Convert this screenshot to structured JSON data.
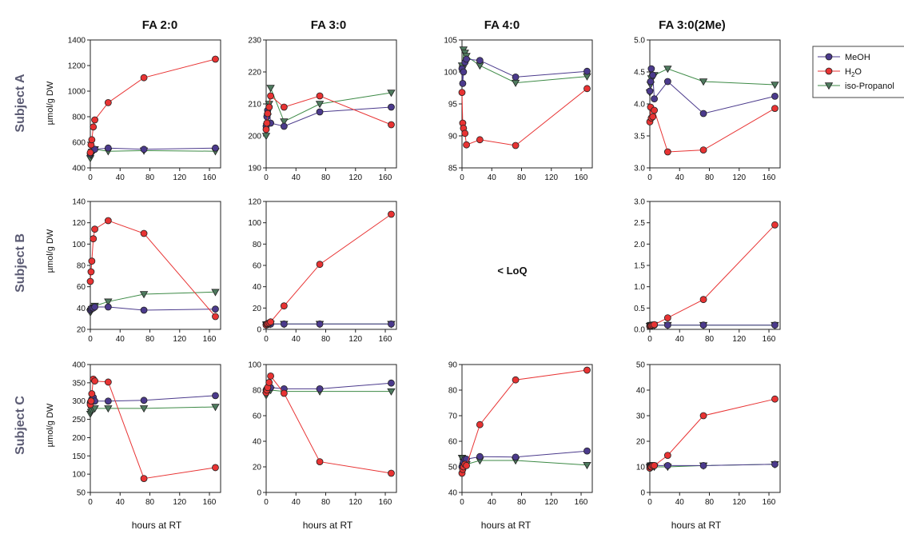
{
  "figure": {
    "column_titles": [
      "FA 2:0",
      "FA 3:0",
      "FA 4:0",
      "FA 3:0(2Me)"
    ],
    "row_titles": [
      "Subject A",
      "Subject B",
      "Subject C"
    ],
    "ylabel": "µmol/g DW",
    "xlabel": "hours at RT",
    "missing_panel_note": "< LoQ",
    "legend": [
      {
        "label": "MeOH",
        "marker": "circle",
        "color": "#4b3a8c",
        "fill": "#4b3a8c"
      },
      {
        "label": "H2O",
        "marker": "circle",
        "color": "#e83333",
        "fill": "#e83333"
      },
      {
        "label": "iso-Propanol",
        "marker": "triangle-down",
        "color": "#3d8a46",
        "fill": "#4e7a5e"
      }
    ]
  },
  "chart_data": [
    {
      "type": "line",
      "id": "A-FA2:0",
      "row": 0,
      "col": 0,
      "xticks": [
        0,
        40,
        80,
        120,
        160
      ],
      "yticks": [
        400,
        600,
        800,
        1000,
        1200,
        1400
      ],
      "xlim": [
        0,
        175
      ],
      "ylim": [
        400,
        1400
      ],
      "series": [
        {
          "name": "MeOH",
          "x": [
            0,
            1,
            2,
            4,
            6,
            24,
            72,
            168
          ],
          "y": [
            510,
            520,
            530,
            540,
            545,
            555,
            545,
            555
          ]
        },
        {
          "name": "H2O",
          "x": [
            0,
            1,
            2,
            4,
            6,
            24,
            72,
            168
          ],
          "y": [
            520,
            580,
            620,
            720,
            775,
            910,
            1105,
            1250
          ]
        },
        {
          "name": "iso-Propanol",
          "x": [
            0,
            1,
            2,
            4,
            6,
            24,
            72,
            168
          ],
          "y": [
            475,
            500,
            525,
            540,
            545,
            530,
            535,
            530
          ]
        }
      ]
    },
    {
      "type": "line",
      "id": "A-FA3:0",
      "row": 0,
      "col": 1,
      "xticks": [
        0,
        40,
        80,
        120,
        160
      ],
      "yticks": [
        190,
        200,
        210,
        220,
        230
      ],
      "xlim": [
        0,
        175
      ],
      "ylim": [
        190,
        230
      ],
      "series": [
        {
          "name": "MeOH",
          "x": [
            0,
            1,
            2,
            4,
            6,
            24,
            72,
            168
          ],
          "y": [
            203,
            206,
            208,
            209,
            204,
            203,
            207.5,
            209
          ]
        },
        {
          "name": "H2O",
          "x": [
            0,
            1,
            2,
            4,
            6,
            24,
            72,
            168
          ],
          "y": [
            202,
            204,
            207,
            209,
            212.5,
            209,
            212.5,
            203.5
          ]
        },
        {
          "name": "iso-Propanol",
          "x": [
            0,
            1,
            2,
            4,
            6,
            24,
            72,
            168
          ],
          "y": [
            200,
            203,
            206,
            210,
            215,
            204.5,
            210,
            213.5
          ]
        }
      ]
    },
    {
      "type": "line",
      "id": "A-FA4:0",
      "row": 0,
      "col": 2,
      "xticks": [
        0,
        40,
        80,
        120,
        160
      ],
      "yticks": [
        85,
        90,
        95,
        100,
        105
      ],
      "xlim": [
        0,
        175
      ],
      "ylim": [
        85,
        105
      ],
      "series": [
        {
          "name": "MeOH",
          "x": [
            0,
            1,
            2,
            4,
            6,
            24,
            72,
            168
          ],
          "y": [
            100.5,
            98.2,
            100,
            101.5,
            102,
            101.8,
            99.2,
            100.1
          ]
        },
        {
          "name": "H2O",
          "x": [
            0,
            1,
            2,
            4,
            6,
            24,
            72,
            168
          ],
          "y": [
            96.8,
            92.0,
            91.2,
            90.4,
            88.6,
            89.4,
            88.5,
            97.4
          ]
        },
        {
          "name": "iso-Propanol",
          "x": [
            0,
            1,
            2,
            4,
            6,
            24,
            72,
            168
          ],
          "y": [
            101,
            100.5,
            103.5,
            103,
            102.5,
            101,
            98.3,
            99.3
          ]
        }
      ]
    },
    {
      "type": "line",
      "id": "A-FA3:0(2Me)",
      "row": 0,
      "col": 3,
      "xticks": [
        0,
        40,
        80,
        120,
        160
      ],
      "yticks": [
        3.0,
        3.5,
        4.0,
        4.5,
        5.0
      ],
      "xlim": [
        0,
        175
      ],
      "ylim": [
        3.0,
        5.0
      ],
      "decimals": 1,
      "series": [
        {
          "name": "MeOH",
          "x": [
            0,
            1,
            2,
            4,
            6,
            24,
            72,
            168
          ],
          "y": [
            4.2,
            4.35,
            4.55,
            4.45,
            4.08,
            4.35,
            3.85,
            4.12
          ]
        },
        {
          "name": "H2O",
          "x": [
            0,
            1,
            2,
            4,
            6,
            24,
            72,
            168
          ],
          "y": [
            3.72,
            3.95,
            3.78,
            3.8,
            3.9,
            3.25,
            3.28,
            3.93
          ]
        },
        {
          "name": "iso-Propanol",
          "x": [
            0,
            1,
            2,
            4,
            6,
            24,
            72,
            168
          ],
          "y": [
            4.18,
            4.3,
            4.4,
            4.42,
            4.45,
            4.55,
            4.35,
            4.3
          ]
        }
      ]
    },
    {
      "type": "line",
      "id": "B-FA2:0",
      "row": 1,
      "col": 0,
      "xticks": [
        0,
        40,
        80,
        120,
        160
      ],
      "yticks": [
        20,
        40,
        60,
        80,
        100,
        120,
        140
      ],
      "xlim": [
        0,
        175
      ],
      "ylim": [
        20,
        140
      ],
      "series": [
        {
          "name": "MeOH",
          "x": [
            0,
            1,
            2,
            4,
            6,
            24,
            72,
            168
          ],
          "y": [
            38,
            39,
            40,
            40,
            41,
            41,
            38,
            39
          ]
        },
        {
          "name": "H2O",
          "x": [
            0,
            1,
            2,
            4,
            6,
            24,
            72,
            168
          ],
          "y": [
            65,
            74,
            84,
            105,
            114,
            122,
            110,
            32
          ]
        },
        {
          "name": "iso-Propanol",
          "x": [
            0,
            1,
            2,
            4,
            6,
            24,
            72,
            168
          ],
          "y": [
            36,
            37,
            39,
            40,
            42,
            46,
            53,
            55
          ]
        }
      ]
    },
    {
      "type": "line",
      "id": "B-FA3:0",
      "row": 1,
      "col": 1,
      "xticks": [
        0,
        40,
        80,
        120,
        160
      ],
      "yticks": [
        0,
        20,
        40,
        60,
        80,
        100,
        120
      ],
      "xlim": [
        0,
        175
      ],
      "ylim": [
        0,
        120
      ],
      "series": [
        {
          "name": "MeOH",
          "x": [
            0,
            1,
            2,
            4,
            6,
            24,
            72,
            168
          ],
          "y": [
            4.5,
            4.7,
            4.8,
            5,
            5,
            5,
            5,
            5
          ]
        },
        {
          "name": "H2O",
          "x": [
            0,
            1,
            2,
            4,
            6,
            24,
            72,
            168
          ],
          "y": [
            4,
            5,
            5.5,
            6,
            7,
            22,
            61,
            108
          ]
        },
        {
          "name": "iso-Propanol",
          "x": [
            0,
            1,
            2,
            4,
            6,
            24,
            72,
            168
          ],
          "y": [
            4.5,
            4.6,
            4.8,
            5,
            5,
            5,
            5,
            5
          ]
        }
      ]
    },
    {
      "type": "line",
      "id": "B-FA3:0(2Me)",
      "row": 1,
      "col": 3,
      "xticks": [
        0,
        40,
        80,
        120,
        160
      ],
      "yticks": [
        0.0,
        0.5,
        1.0,
        1.5,
        2.0,
        2.5,
        3.0
      ],
      "xlim": [
        0,
        175
      ],
      "ylim": [
        0,
        3.0
      ],
      "decimals": 1,
      "series": [
        {
          "name": "MeOH",
          "x": [
            0,
            1,
            2,
            4,
            6,
            24,
            72,
            168
          ],
          "y": [
            0.08,
            0.09,
            0.1,
            0.1,
            0.1,
            0.1,
            0.1,
            0.1
          ]
        },
        {
          "name": "H2O",
          "x": [
            0,
            1,
            2,
            4,
            6,
            24,
            72,
            168
          ],
          "y": [
            0.07,
            0.08,
            0.09,
            0.1,
            0.11,
            0.27,
            0.7,
            2.45
          ]
        },
        {
          "name": "iso-Propanol",
          "x": [
            0,
            1,
            2,
            4,
            6,
            24,
            72,
            168
          ],
          "y": [
            0.08,
            0.09,
            0.1,
            0.1,
            0.1,
            0.1,
            0.1,
            0.1
          ]
        }
      ]
    },
    {
      "type": "line",
      "id": "C-FA2:0",
      "row": 2,
      "col": 0,
      "xticks": [
        0,
        40,
        80,
        120,
        160
      ],
      "yticks": [
        50,
        100,
        150,
        200,
        250,
        300,
        350,
        400
      ],
      "xlim": [
        0,
        175
      ],
      "ylim": [
        50,
        400
      ],
      "series": [
        {
          "name": "MeOH",
          "x": [
            0,
            1,
            2,
            4,
            6,
            24,
            72,
            168
          ],
          "y": [
            295,
            300,
            305,
            310,
            300,
            300,
            302,
            315
          ]
        },
        {
          "name": "H2O",
          "x": [
            0,
            1,
            2,
            4,
            6,
            24,
            72,
            168
          ],
          "y": [
            290,
            300,
            320,
            360,
            355,
            352,
            88,
            118
          ]
        },
        {
          "name": "iso-Propanol",
          "x": [
            0,
            1,
            2,
            4,
            6,
            24,
            72,
            168
          ],
          "y": [
            265,
            270,
            275,
            278,
            280,
            280,
            280,
            284
          ]
        }
      ]
    },
    {
      "type": "line",
      "id": "C-FA3:0",
      "row": 2,
      "col": 1,
      "xticks": [
        0,
        40,
        80,
        120,
        160
      ],
      "yticks": [
        0,
        20,
        40,
        60,
        80,
        100
      ],
      "xlim": [
        0,
        175
      ],
      "ylim": [
        0,
        100
      ],
      "series": [
        {
          "name": "MeOH",
          "x": [
            0,
            1,
            2,
            4,
            6,
            24,
            72,
            168
          ],
          "y": [
            80,
            81,
            82,
            82,
            82,
            81,
            81,
            85.5
          ]
        },
        {
          "name": "H2O",
          "x": [
            0,
            1,
            2,
            4,
            6,
            24,
            72,
            168
          ],
          "y": [
            78,
            80,
            82,
            86,
            91,
            77.5,
            24,
            15
          ]
        },
        {
          "name": "iso-Propanol",
          "x": [
            0,
            1,
            2,
            4,
            6,
            24,
            72,
            168
          ],
          "y": [
            76,
            78,
            80,
            80,
            80,
            79,
            79,
            79
          ]
        }
      ]
    },
    {
      "type": "line",
      "id": "C-FA4:0",
      "row": 2,
      "col": 2,
      "xticks": [
        0,
        40,
        80,
        120,
        160
      ],
      "yticks": [
        40,
        50,
        60,
        70,
        80,
        90
      ],
      "xlim": [
        0,
        175
      ],
      "ylim": [
        40,
        90
      ],
      "series": [
        {
          "name": "MeOH",
          "x": [
            0,
            1,
            2,
            4,
            6,
            24,
            72,
            168
          ],
          "y": [
            50,
            51,
            52,
            53,
            53,
            54,
            53.8,
            56.2
          ]
        },
        {
          "name": "H2O",
          "x": [
            0,
            1,
            2,
            4,
            6,
            24,
            72,
            168
          ],
          "y": [
            47.5,
            49,
            50,
            51,
            50.5,
            66.5,
            84,
            87.8
          ]
        },
        {
          "name": "iso-Propanol",
          "x": [
            0,
            1,
            2,
            4,
            6,
            24,
            72,
            168
          ],
          "y": [
            53.5,
            53,
            52,
            51.5,
            51,
            52.5,
            52.5,
            50.7
          ]
        }
      ]
    },
    {
      "type": "line",
      "id": "C-FA3:0(2Me)",
      "row": 2,
      "col": 3,
      "xticks": [
        0,
        40,
        80,
        120,
        160
      ],
      "yticks": [
        0,
        10,
        20,
        30,
        40,
        50
      ],
      "xlim": [
        0,
        175
      ],
      "ylim": [
        0,
        50
      ],
      "series": [
        {
          "name": "MeOH",
          "x": [
            0,
            1,
            2,
            4,
            6,
            24,
            72,
            168
          ],
          "y": [
            10.5,
            10.5,
            10.5,
            10.5,
            10.5,
            10.5,
            10.5,
            11
          ]
        },
        {
          "name": "H2O",
          "x": [
            0,
            1,
            2,
            4,
            6,
            24,
            72,
            168
          ],
          "y": [
            9.5,
            10,
            10,
            10.5,
            10.5,
            14.5,
            30,
            36.5
          ]
        },
        {
          "name": "iso-Propanol",
          "x": [
            0,
            1,
            2,
            4,
            6,
            24,
            72,
            168
          ],
          "y": [
            10,
            10.5,
            10.5,
            10.5,
            10,
            10,
            10.5,
            11
          ]
        }
      ]
    }
  ]
}
